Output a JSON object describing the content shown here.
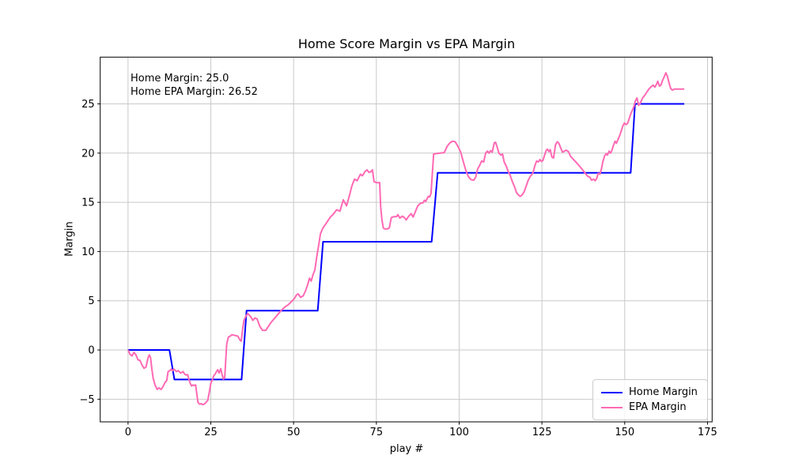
{
  "figure": {
    "title": "Home Score Margin vs EPA Margin",
    "xlabel": "play #",
    "ylabel": "Margin",
    "annotation_line1": "Home Margin: 25.0",
    "annotation_line2": "Home EPA Margin: 26.52"
  },
  "legend": {
    "items": [
      {
        "label": "Home Margin",
        "color": "#0000ff"
      },
      {
        "label": "EPA Margin",
        "color": "#ff69b4"
      }
    ]
  },
  "colors": {
    "home_line": "#0000ff",
    "epa_line": "#ff69b4",
    "grid": "#c9c9c9",
    "spine": "#000000",
    "text": "#000000"
  },
  "chart_data": {
    "type": "line",
    "title": "Home Score Margin vs EPA Margin",
    "xlabel": "play #",
    "ylabel": "Margin",
    "xlim": [
      -8.4,
      176.4
    ],
    "ylim": [
      -7.3,
      29.75
    ],
    "x_ticks": [
      0,
      25,
      50,
      75,
      100,
      125,
      150,
      175
    ],
    "x_tick_labels": [
      "0",
      "25",
      "50",
      "75",
      "100",
      "125",
      "150",
      "175"
    ],
    "y_ticks": [
      -5,
      0,
      5,
      10,
      15,
      20,
      25
    ],
    "y_tick_labels": [
      "−5",
      "0",
      "5",
      "10",
      "15",
      "20",
      "25"
    ],
    "grid": true,
    "legend_position": "lower right",
    "annotation": [
      "Home Margin: 25.0",
      "Home EPA Margin: 26.52"
    ],
    "final_values": {
      "home_margin": 25.0,
      "home_epa_margin": 26.52
    },
    "series": [
      {
        "name": "Home Margin",
        "color": "#0000ff",
        "points": [
          [
            0,
            0
          ],
          [
            12.5,
            0
          ],
          [
            14,
            -3
          ],
          [
            34.3,
            -3
          ],
          [
            35.8,
            4
          ],
          [
            57.3,
            4
          ],
          [
            58.9,
            11
          ],
          [
            91.7,
            11
          ],
          [
            93.5,
            18
          ],
          [
            151.8,
            18
          ],
          [
            153.1,
            25
          ],
          [
            168,
            25
          ]
        ]
      },
      {
        "name": "EPA Margin",
        "color": "#ff69b4",
        "points": [
          [
            0,
            0
          ],
          [
            0.6,
            -0.45
          ],
          [
            1.2,
            -0.6
          ],
          [
            1.8,
            -0.25
          ],
          [
            2.4,
            -0.5
          ],
          [
            3,
            -1
          ],
          [
            3.6,
            -1.05
          ],
          [
            4.2,
            -1.5
          ],
          [
            4.8,
            -1.85
          ],
          [
            5.4,
            -1.75
          ],
          [
            6,
            -0.85
          ],
          [
            6.4,
            -0.5
          ],
          [
            6.8,
            -0.75
          ],
          [
            7.2,
            -1.95
          ],
          [
            7.6,
            -2.9
          ],
          [
            8.2,
            -3.6
          ],
          [
            8.8,
            -4
          ],
          [
            9.3,
            -3.85
          ],
          [
            10,
            -4
          ],
          [
            10.6,
            -3.7
          ],
          [
            11.2,
            -3.3
          ],
          [
            11.7,
            -3.1
          ],
          [
            12.1,
            -2.2
          ],
          [
            12.6,
            -2.1
          ],
          [
            13,
            -1.95
          ],
          [
            13.4,
            -2.1
          ],
          [
            13.9,
            -1.95
          ],
          [
            14.6,
            -2.2
          ],
          [
            15.2,
            -2.1
          ],
          [
            15.9,
            -2.35
          ],
          [
            16.6,
            -2.2
          ],
          [
            17.1,
            -2.45
          ],
          [
            17.6,
            -2.55
          ],
          [
            18,
            -2.5
          ],
          [
            18.4,
            -3
          ],
          [
            18.8,
            -3.4
          ],
          [
            19.2,
            -3.65
          ],
          [
            19.6,
            -3.55
          ],
          [
            20,
            -3.6
          ],
          [
            20.4,
            -3.55
          ],
          [
            21.1,
            -5.3
          ],
          [
            21.6,
            -5.5
          ],
          [
            22.1,
            -5.45
          ],
          [
            22.5,
            -5.55
          ],
          [
            23,
            -5.5
          ],
          [
            23.5,
            -5.35
          ],
          [
            24.1,
            -5.1
          ],
          [
            24.6,
            -4.2
          ],
          [
            25,
            -3.4
          ],
          [
            25.5,
            -3
          ],
          [
            25.9,
            -2.6
          ],
          [
            26.3,
            -2.45
          ],
          [
            26.7,
            -2.2
          ],
          [
            27.1,
            -2
          ],
          [
            27.5,
            -2.35
          ],
          [
            28,
            -1.9
          ],
          [
            28.4,
            -2.5
          ],
          [
            28.8,
            -2.95
          ],
          [
            29.2,
            -2.8
          ],
          [
            29.8,
            0.6
          ],
          [
            30.3,
            1.3
          ],
          [
            30.8,
            1.4
          ],
          [
            31.4,
            1.55
          ],
          [
            32,
            1.5
          ],
          [
            32.7,
            1.45
          ],
          [
            33.2,
            1.4
          ],
          [
            33.8,
            1
          ],
          [
            34.2,
            0.9
          ],
          [
            34.6,
            2.1
          ],
          [
            35,
            3
          ],
          [
            35.7,
            3.5
          ],
          [
            36.2,
            3.7
          ],
          [
            37,
            3.4
          ],
          [
            37.7,
            3
          ],
          [
            38.3,
            3.25
          ],
          [
            39,
            3.15
          ],
          [
            39.8,
            2.4
          ],
          [
            40.6,
            2
          ],
          [
            41.6,
            2
          ],
          [
            42.4,
            2.4
          ],
          [
            43.2,
            2.8
          ],
          [
            44.2,
            3.2
          ],
          [
            45.2,
            3.6
          ],
          [
            46.2,
            4
          ],
          [
            47.3,
            4.35
          ],
          [
            48.4,
            4.6
          ],
          [
            49.3,
            4.9
          ],
          [
            50.2,
            5.2
          ],
          [
            50.9,
            5.6
          ],
          [
            51.4,
            5.7
          ],
          [
            52.1,
            5.35
          ],
          [
            52.9,
            5.5
          ],
          [
            53.6,
            6
          ],
          [
            54.2,
            6.6
          ],
          [
            54.8,
            7.3
          ],
          [
            55.3,
            7
          ],
          [
            55.9,
            7.7
          ],
          [
            56.4,
            8.1
          ],
          [
            57,
            9.5
          ],
          [
            57.6,
            10.7
          ],
          [
            58.1,
            11.8
          ],
          [
            58.8,
            12.35
          ],
          [
            59.5,
            12.7
          ],
          [
            60.3,
            13.1
          ],
          [
            61.1,
            13.5
          ],
          [
            62,
            13.8
          ],
          [
            63,
            14.25
          ],
          [
            64,
            14.1
          ],
          [
            65,
            15.25
          ],
          [
            66,
            14.65
          ],
          [
            66.8,
            15.6
          ],
          [
            67.6,
            16.65
          ],
          [
            68.4,
            17.35
          ],
          [
            69.2,
            17.2
          ],
          [
            70.2,
            17.85
          ],
          [
            70.8,
            17.7
          ],
          [
            71.6,
            18.15
          ],
          [
            72.2,
            18.3
          ],
          [
            72.7,
            18.05
          ],
          [
            73.3,
            18.1
          ],
          [
            73.8,
            18.3
          ],
          [
            74.3,
            17.1
          ],
          [
            75,
            17
          ],
          [
            76,
            17
          ],
          [
            76.3,
            14.5
          ],
          [
            76.7,
            13.2
          ],
          [
            77.1,
            12.4
          ],
          [
            77.5,
            12.3
          ],
          [
            78.3,
            12.3
          ],
          [
            78.9,
            12.4
          ],
          [
            79.5,
            13.45
          ],
          [
            80.3,
            13.55
          ],
          [
            81.1,
            13.55
          ],
          [
            81.5,
            13.75
          ],
          [
            82.1,
            13.4
          ],
          [
            82.9,
            13.6
          ],
          [
            83.6,
            13.4
          ],
          [
            84,
            13.2
          ],
          [
            84.8,
            13.6
          ],
          [
            85.5,
            13.85
          ],
          [
            86.1,
            13.5
          ],
          [
            86.9,
            14.15
          ],
          [
            87.5,
            14.65
          ],
          [
            88.3,
            14.9
          ],
          [
            89.1,
            14.95
          ],
          [
            89.5,
            15.2
          ],
          [
            89.9,
            15.1
          ],
          [
            90.7,
            15.6
          ],
          [
            91.1,
            15.55
          ],
          [
            91.5,
            15.9
          ],
          [
            92.3,
            19.9
          ],
          [
            93.1,
            19.95
          ],
          [
            94.3,
            20
          ],
          [
            95.5,
            20.05
          ],
          [
            96.4,
            20.7
          ],
          [
            97.2,
            21.05
          ],
          [
            98,
            21.2
          ],
          [
            98.8,
            21.15
          ],
          [
            99.6,
            20.7
          ],
          [
            100.4,
            20.15
          ],
          [
            101.2,
            19.2
          ],
          [
            102,
            18.25
          ],
          [
            102.8,
            17.6
          ],
          [
            103.6,
            17.3
          ],
          [
            104.4,
            17.25
          ],
          [
            105,
            17.55
          ],
          [
            105.6,
            18.4
          ],
          [
            106.2,
            18.75
          ],
          [
            106.8,
            19.2
          ],
          [
            107.4,
            19.1
          ],
          [
            108,
            20
          ],
          [
            108.5,
            20.2
          ],
          [
            109,
            20
          ],
          [
            109.5,
            20.25
          ],
          [
            110,
            20.1
          ],
          [
            110.6,
            21.05
          ],
          [
            111,
            21.1
          ],
          [
            111.5,
            20.6
          ],
          [
            112,
            20
          ],
          [
            112.6,
            19.8
          ],
          [
            113.1,
            19.9
          ],
          [
            113.6,
            19.1
          ],
          [
            114.2,
            18.7
          ],
          [
            114.8,
            18.15
          ],
          [
            115.4,
            17.75
          ],
          [
            116,
            17.15
          ],
          [
            116.7,
            16.6
          ],
          [
            117.3,
            16
          ],
          [
            117.9,
            15.75
          ],
          [
            118.4,
            15.6
          ],
          [
            119,
            15.75
          ],
          [
            119.6,
            16.05
          ],
          [
            120.2,
            16.6
          ],
          [
            120.8,
            17.2
          ],
          [
            121.5,
            17.65
          ],
          [
            122,
            17.85
          ],
          [
            122.4,
            18.1
          ],
          [
            122.9,
            18.75
          ],
          [
            123.4,
            19.2
          ],
          [
            123.9,
            19.1
          ],
          [
            124.4,
            19.35
          ],
          [
            124.8,
            19.15
          ],
          [
            125.3,
            19.25
          ],
          [
            125.8,
            19.8
          ],
          [
            126.3,
            20.3
          ],
          [
            126.7,
            20.4
          ],
          [
            127.1,
            20.15
          ],
          [
            127.5,
            20.35
          ],
          [
            128,
            19.6
          ],
          [
            128.5,
            19.5
          ],
          [
            129.1,
            20.85
          ],
          [
            129.6,
            21.15
          ],
          [
            130.1,
            21
          ],
          [
            130.7,
            20.5
          ],
          [
            131.2,
            20.1
          ],
          [
            131.8,
            20.2
          ],
          [
            132.3,
            20.3
          ],
          [
            133,
            20.15
          ],
          [
            133.6,
            19.7
          ],
          [
            134.4,
            19.4
          ],
          [
            135.5,
            19
          ],
          [
            136.4,
            18.65
          ],
          [
            137.4,
            18.25
          ],
          [
            138.2,
            17.9
          ],
          [
            138.8,
            17.65
          ],
          [
            139.5,
            17.55
          ],
          [
            140,
            17.25
          ],
          [
            140.6,
            17.35
          ],
          [
            141.1,
            17.2
          ],
          [
            141.5,
            17.4
          ],
          [
            142,
            17.95
          ],
          [
            142.5,
            17.85
          ],
          [
            143,
            18.45
          ],
          [
            143.4,
            19.15
          ],
          [
            143.9,
            19.7
          ],
          [
            144.4,
            19.95
          ],
          [
            144.8,
            19.8
          ],
          [
            145.3,
            20.2
          ],
          [
            145.7,
            20
          ],
          [
            146.1,
            20.25
          ],
          [
            146.6,
            20.8
          ],
          [
            147.1,
            21.2
          ],
          [
            147.5,
            21
          ],
          [
            148,
            21.4
          ],
          [
            148.5,
            21.8
          ],
          [
            149,
            22.3
          ],
          [
            149.4,
            22.75
          ],
          [
            149.9,
            23.05
          ],
          [
            150.4,
            22.9
          ],
          [
            150.9,
            23.05
          ],
          [
            151.3,
            23.45
          ],
          [
            151.8,
            23.95
          ],
          [
            152.3,
            24.35
          ],
          [
            152.8,
            24.75
          ],
          [
            153.2,
            25.3
          ],
          [
            153.7,
            25.6
          ],
          [
            154.2,
            24.85
          ],
          [
            154.6,
            25
          ],
          [
            155.4,
            25.6
          ],
          [
            156,
            25.85
          ],
          [
            156.7,
            26.2
          ],
          [
            157.3,
            26.5
          ],
          [
            158,
            26.75
          ],
          [
            158.6,
            26.9
          ],
          [
            159.1,
            26.7
          ],
          [
            159.6,
            27
          ],
          [
            160,
            27.3
          ],
          [
            160.5,
            26.8
          ],
          [
            161,
            26.95
          ],
          [
            161.5,
            27.45
          ],
          [
            162,
            27.8
          ],
          [
            162.4,
            28.15
          ],
          [
            162.9,
            27.8
          ],
          [
            163.4,
            27.1
          ],
          [
            163.9,
            26.55
          ],
          [
            164.4,
            26.4
          ],
          [
            165,
            26.5
          ],
          [
            165.8,
            26.5
          ],
          [
            166.6,
            26.5
          ],
          [
            167.4,
            26.5
          ],
          [
            168,
            26.52
          ]
        ]
      }
    ]
  }
}
